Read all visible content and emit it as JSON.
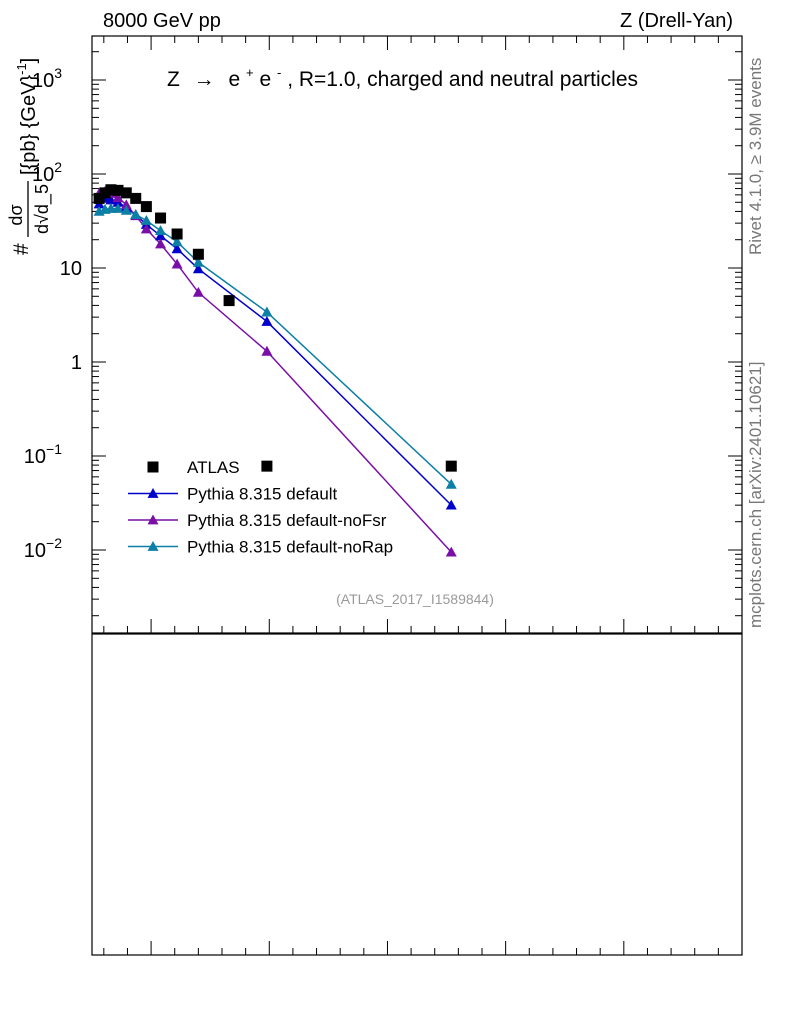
{
  "header": {
    "energy_label": "8000 GeV pp",
    "process_label": "Z (Drell-Yan)"
  },
  "side_labels": {
    "rivet": "Rivet 4.1.0, ≥ 3.9M events",
    "mcplots": "mcplots.cern.ch [arXiv:2401.10621]"
  },
  "analysis_id": "(ATLAS_2017_I1589844)",
  "y_axis": {
    "prefix": "#",
    "frac_num": "dσ",
    "frac_den": "d√d_5",
    "units": "[{pb} {GeV}",
    "units_sup": "-1",
    "units_close": "]"
  },
  "y_ticks": [
    {
      "value": 0.01,
      "base": "10",
      "exp": "−2"
    },
    {
      "value": 0.1,
      "base": "10",
      "exp": "−1"
    },
    {
      "value": 1,
      "base": "1",
      "exp": ""
    },
    {
      "value": 10,
      "base": "10",
      "exp": ""
    },
    {
      "value": 100,
      "base": "10",
      "exp": "2"
    },
    {
      "value": 1000,
      "base": "10",
      "exp": "3"
    }
  ],
  "chart_data": {
    "type": "scatter",
    "title": "Z → e⁺e⁻, R=1.0, charged and neutral particles",
    "title_parts": {
      "z": "Z",
      "arrow": "→",
      "e": "e",
      "plus": "+",
      "minus": "-",
      "rest": ", R=1.0, charged and neutral particles"
    },
    "xlabel": "",
    "ylabel": "# dσ / d√d_5 [{pb} {GeV}^-1]",
    "y_scale": "log",
    "ylim": [
      0.001,
      3000
    ],
    "xlim": [
      0.5,
      6.0
    ],
    "legend_position": "lower-left",
    "series": [
      {
        "name": "ATLAS",
        "marker": "square",
        "color": "#000000",
        "line": false,
        "x": [
          0.56,
          0.61,
          0.66,
          0.72,
          0.79,
          0.87,
          0.96,
          1.08,
          1.22,
          1.4,
          1.66,
          1.98,
          3.54
        ],
        "y": [
          55,
          63,
          68,
          67,
          63,
          55,
          45,
          34,
          23,
          14,
          4.5,
          0.078,
          0.078
        ]
      },
      {
        "name": "Pythia 8.315 default",
        "marker": "triangle",
        "color": "#0000cc",
        "line": true,
        "x": [
          0.56,
          0.61,
          0.66,
          0.72,
          0.79,
          0.87,
          0.96,
          1.08,
          1.22,
          1.4,
          1.98,
          3.54
        ],
        "y": [
          48,
          55,
          53,
          50,
          44,
          37,
          29,
          22,
          16,
          9.8,
          2.7,
          0.03
        ]
      },
      {
        "name": "Pythia 8.315 default-noFsr",
        "marker": "triangle",
        "color": "#7a0fa8",
        "line": true,
        "x": [
          0.56,
          0.61,
          0.66,
          0.72,
          0.79,
          0.87,
          0.96,
          1.08,
          1.22,
          1.4,
          1.98,
          3.54
        ],
        "y": [
          62,
          65,
          62,
          56,
          47,
          36,
          26,
          18,
          11,
          5.5,
          1.3,
          0.0095
        ]
      },
      {
        "name": "Pythia 8.315 default-noRap",
        "marker": "triangle",
        "color": "#0b7fa5",
        "line": true,
        "x": [
          0.56,
          0.61,
          0.66,
          0.72,
          0.79,
          0.87,
          0.96,
          1.08,
          1.22,
          1.4,
          1.98,
          3.54
        ],
        "y": [
          40,
          42,
          43,
          43,
          41,
          37,
          32,
          25,
          19,
          11.5,
          3.4,
          0.05
        ]
      }
    ]
  }
}
